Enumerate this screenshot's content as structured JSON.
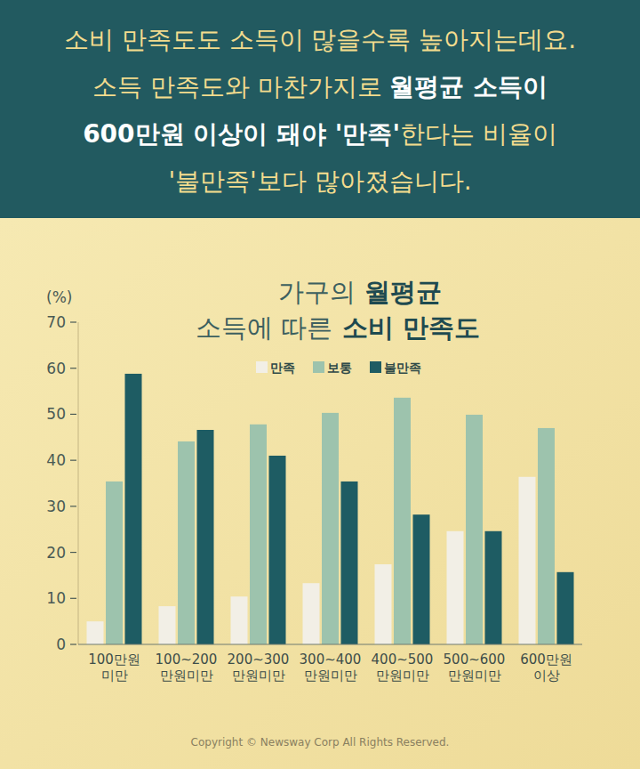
{
  "header": {
    "lines": [
      [
        {
          "text": "소비 만족도도 소득이 많을수록 높아지는데요.",
          "bold": false
        }
      ],
      [
        {
          "text": "소득 만족도와 마찬가지로 ",
          "bold": false
        },
        {
          "text": "월평균 소득이",
          "bold": true
        }
      ],
      [
        {
          "text": "600만원 이상이 돼야 '만족'",
          "bold": true
        },
        {
          "text": "한다는 비율이",
          "bold": false
        }
      ],
      [
        {
          "text": "'불만족'보다 많아졌습니다.",
          "bold": false
        }
      ]
    ]
  },
  "chart_data": {
    "type": "bar",
    "title": "가구의 월평균 소득에 따른 소비 만족도",
    "y_label": "(%)",
    "categories": [
      "100만원\n미만",
      "100~200\n만원미만",
      "200~300\n만원미만",
      "300~400\n만원미만",
      "400~500\n만원미만",
      "500~600\n만원미만",
      "600만원\n이상"
    ],
    "series": [
      {
        "name": "만족",
        "color": "#f2efe6",
        "values": [
          5.0,
          8.3,
          10.4,
          13.3,
          17.4,
          24.6,
          36.4
        ]
      },
      {
        "name": "보통",
        "color": "#9dc3ad",
        "values": [
          35.4,
          44.1,
          47.8,
          50.3,
          53.6,
          49.9,
          47.0
        ]
      },
      {
        "name": "불만족",
        "color": "#1e5c63",
        "values": [
          58.8,
          46.6,
          41.0,
          35.4,
          28.2,
          24.6,
          15.7
        ]
      }
    ],
    "ylim": [
      0,
      70
    ],
    "yticks": [
      0,
      10,
      20,
      30,
      40,
      50,
      60,
      70
    ],
    "grid": false,
    "legend": "top"
  },
  "footer": "Copyright © Newsway Corp All Rights Reserved."
}
